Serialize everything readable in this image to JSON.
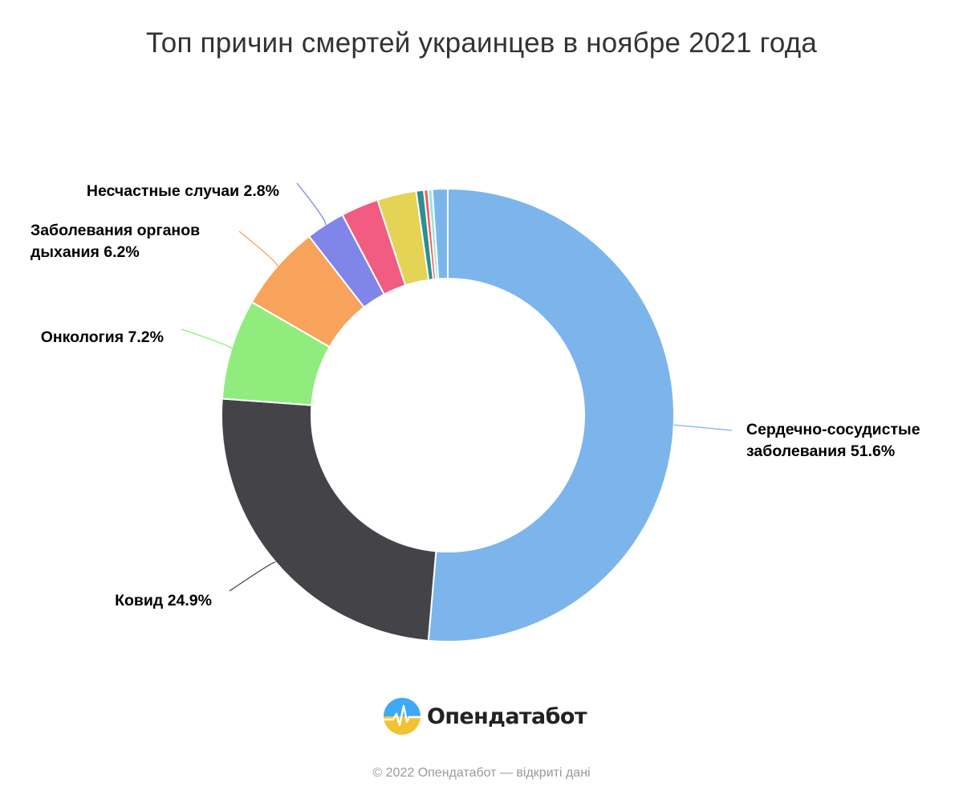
{
  "chart_data": {
    "type": "pie",
    "variant": "donut",
    "title": "Топ причин смертей украинцев в ноябре 2021 года",
    "series": [
      {
        "name": "Сердечно-сосудистые заболевания",
        "value": 51.6,
        "color": "#7cb5ec",
        "label_lines": [
          "Сердечно-сосудистые",
          "заболевания 51.6%"
        ]
      },
      {
        "name": "Ковид",
        "value": 24.9,
        "color": "#434348",
        "label_lines": [
          "Ковид 24.9%"
        ]
      },
      {
        "name": "Онкология",
        "value": 7.2,
        "color": "#90ed7d",
        "label_lines": [
          "Онкология 7.2%"
        ]
      },
      {
        "name": "Заболевания органов дыхания",
        "value": 6.2,
        "color": "#f7a35c",
        "label_lines": [
          "Заболевания органов",
          "дыхания 6.2%"
        ]
      },
      {
        "name": "Несчастные случаи",
        "value": 2.8,
        "color": "#8085e9",
        "label_lines": [
          "Несчастные случаи 2.8%"
        ]
      },
      {
        "name": "",
        "value": 2.7,
        "color": "#f15c80",
        "label_lines": []
      },
      {
        "name": "",
        "value": 2.8,
        "color": "#e4d354",
        "label_lines": []
      },
      {
        "name": "",
        "value": 0.55,
        "color": "#2b908f",
        "label_lines": []
      },
      {
        "name": "",
        "value": 0.3,
        "color": "#f45b5b",
        "label_lines": []
      },
      {
        "name": "",
        "value": 0.3,
        "color": "#91e8e1",
        "label_lines": []
      },
      {
        "name": "",
        "value": 1.1,
        "color": "#7cb5ec",
        "label_lines": []
      }
    ]
  },
  "logo": {
    "name": "Опендатабот"
  },
  "footer": "© 2022 Опендатабот — відкриті дані"
}
